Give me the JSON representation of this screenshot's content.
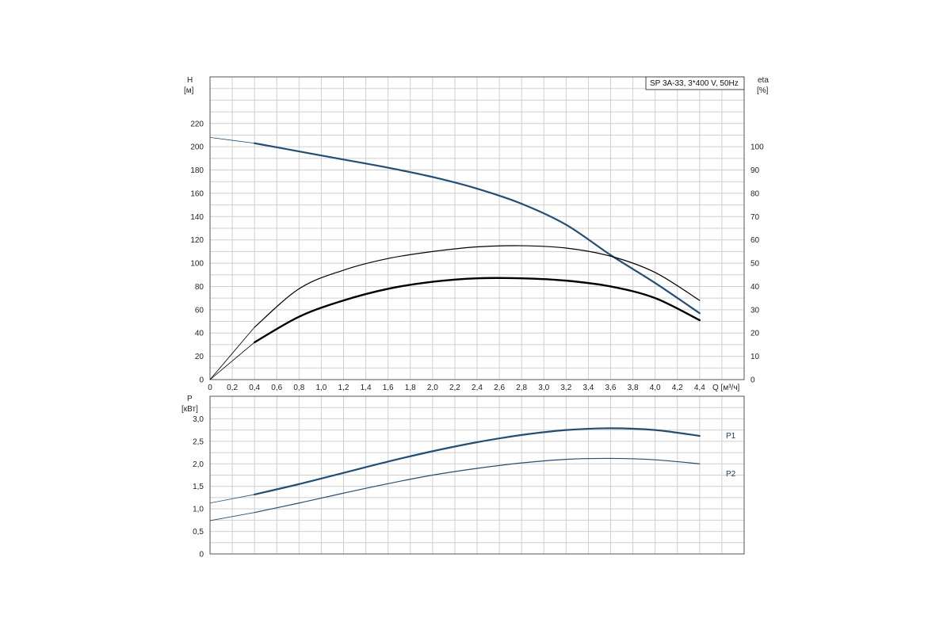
{
  "chart_data": [
    {
      "type": "line",
      "title": "SP 3A-33, 3*400 V, 50Hz",
      "xlabel": "Q [м³/ч]",
      "ylabel": "H",
      "ylabel_unit": "[м]",
      "y2label": "eta",
      "y2label_unit": "[%]",
      "xlim": [
        0,
        4.8
      ],
      "ylim": [
        0,
        260
      ],
      "y2lim": [
        0,
        130
      ],
      "x_ticks": [
        "0",
        "0,2",
        "0,4",
        "0,6",
        "0,8",
        "1,0",
        "1,2",
        "1,4",
        "1,6",
        "1,8",
        "2,0",
        "2,2",
        "2,4",
        "2,6",
        "2,8",
        "3,0",
        "3,2",
        "3,4",
        "3,6",
        "3,8",
        "4,0",
        "4,2",
        "4,4"
      ],
      "y_ticks": [
        "0",
        "20",
        "40",
        "60",
        "80",
        "100",
        "120",
        "140",
        "160",
        "180",
        "200",
        "220"
      ],
      "y2_ticks": [
        "0",
        "10",
        "20",
        "30",
        "40",
        "50",
        "60",
        "70",
        "80",
        "90",
        "100"
      ],
      "grid": true,
      "series": [
        {
          "name": "",
          "axis": "left",
          "color": "#1f4f7a",
          "x": [
            0,
            0.4,
            0.8,
            1.2,
            1.6,
            2.0,
            2.4,
            2.8,
            3.2,
            3.6,
            4.0,
            4.4
          ],
          "values": [
            208,
            203,
            196,
            189,
            182,
            174,
            164,
            151,
            133,
            107,
            83,
            57
          ],
          "operating_range": [
            0.4,
            4.4
          ]
        },
        {
          "name": "",
          "axis": "right",
          "color": "#000000",
          "x": [
            0,
            0.4,
            0.8,
            1.2,
            1.6,
            2.0,
            2.4,
            2.8,
            3.2,
            3.6,
            4.0,
            4.4
          ],
          "values": [
            0,
            22.5,
            39,
            47,
            52,
            55,
            57,
            57.5,
            56.5,
            53,
            46,
            34
          ],
          "operating_range": [
            0.4,
            4.4
          ]
        },
        {
          "name": "",
          "axis": "right",
          "color": "#000000",
          "x": [
            0,
            0.4,
            0.8,
            1.2,
            1.6,
            2.0,
            2.4,
            2.8,
            3.2,
            3.6,
            4.0,
            4.4
          ],
          "values": [
            0,
            16,
            27,
            34,
            39,
            42,
            43.5,
            43.5,
            42.5,
            40,
            35,
            25.5
          ],
          "operating_range": [
            0.4,
            4.4
          ]
        }
      ]
    },
    {
      "type": "line",
      "title": "",
      "xlabel": "",
      "ylabel": "P",
      "ylabel_unit": "[кВт]",
      "xlim": [
        0,
        4.8
      ],
      "ylim": [
        0,
        3.5
      ],
      "y_ticks": [
        "0",
        "0,5",
        "1,0",
        "1,5",
        "2,0",
        "2,5",
        "3,0"
      ],
      "grid": true,
      "series": [
        {
          "name": "P1",
          "color": "#1f4f7a",
          "x": [
            0,
            0.4,
            0.8,
            1.2,
            1.6,
            2.0,
            2.4,
            2.8,
            3.2,
            3.6,
            4.0,
            4.4
          ],
          "values": [
            1.13,
            1.32,
            1.55,
            1.8,
            2.05,
            2.28,
            2.48,
            2.64,
            2.75,
            2.79,
            2.75,
            2.62
          ],
          "operating_range": [
            0.4,
            4.4
          ]
        },
        {
          "name": "P2",
          "color": "#1f4f7a",
          "x": [
            0,
            0.4,
            0.8,
            1.2,
            1.6,
            2.0,
            2.4,
            2.8,
            3.2,
            3.6,
            4.0,
            4.4
          ],
          "values": [
            0.74,
            0.92,
            1.13,
            1.35,
            1.56,
            1.75,
            1.9,
            2.02,
            2.1,
            2.12,
            2.09,
            2.0
          ],
          "operating_range": [
            0.4,
            4.4
          ]
        }
      ]
    }
  ]
}
